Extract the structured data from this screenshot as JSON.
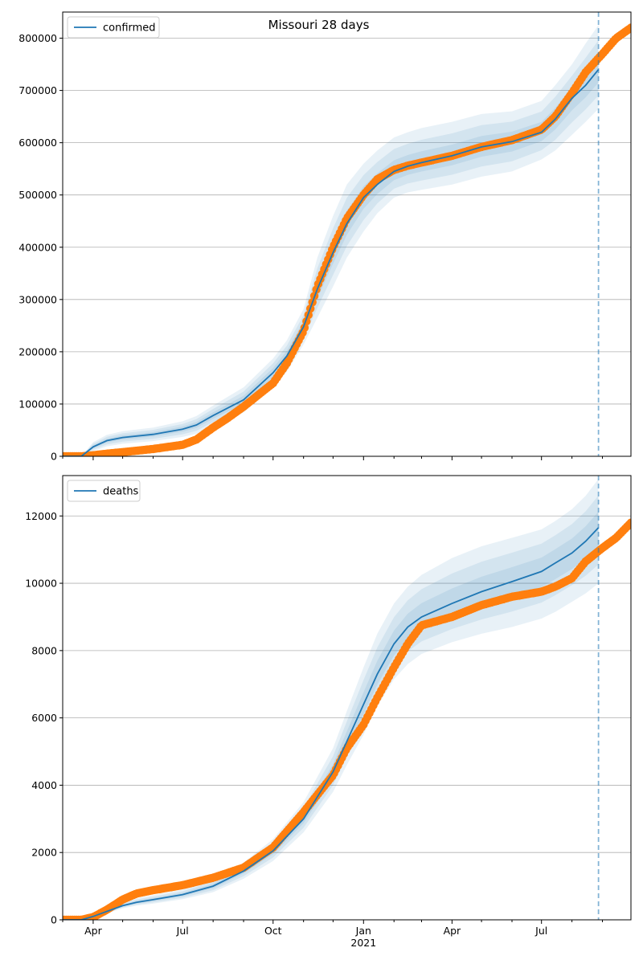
{
  "chart_data": [
    {
      "type": "line",
      "title": "Missouri 28 days",
      "legend": {
        "entries": [
          "confirmed"
        ],
        "placement": "top-left"
      },
      "grid": {
        "x": false,
        "y": true
      },
      "xlim": [
        "2020-03-01",
        "2021-09-30"
      ],
      "ylim": [
        0,
        850000
      ],
      "yticks": [
        0,
        100000,
        200000,
        300000,
        400000,
        500000,
        600000,
        700000,
        800000
      ],
      "ytick_labels": [
        "0",
        "100000",
        "200000",
        "300000",
        "400000",
        "500000",
        "600000",
        "700000",
        "800000"
      ],
      "forecast_line_date": "2021-08-28",
      "model_series": {
        "name": "confirmed",
        "color": "#1f77b4",
        "x": [
          "2020-03-01",
          "2020-03-20",
          "2020-04-01",
          "2020-04-15",
          "2020-05-01",
          "2020-06-01",
          "2020-07-01",
          "2020-07-15",
          "2020-08-01",
          "2020-09-01",
          "2020-10-01",
          "2020-10-15",
          "2020-11-01",
          "2020-11-15",
          "2020-12-01",
          "2020-12-15",
          "2021-01-01",
          "2021-01-15",
          "2021-02-01",
          "2021-02-15",
          "2021-03-01",
          "2021-04-01",
          "2021-05-01",
          "2021-06-01",
          "2021-07-01",
          "2021-07-15",
          "2021-08-01",
          "2021-08-15",
          "2021-08-28"
        ],
        "y": [
          0,
          0,
          18000,
          30000,
          36000,
          42000,
          52000,
          60000,
          78000,
          108000,
          160000,
          192000,
          248000,
          320000,
          390000,
          445000,
          495000,
          520000,
          545000,
          555000,
          562000,
          575000,
          592000,
          602000,
          620000,
          645000,
          685000,
          710000,
          740000
        ],
        "upper": [
          0,
          0,
          27000,
          41000,
          48000,
          55000,
          67000,
          77000,
          97000,
          132000,
          187000,
          222000,
          282000,
          380000,
          460000,
          520000,
          560000,
          585000,
          610000,
          620000,
          628000,
          640000,
          655000,
          660000,
          680000,
          710000,
          750000,
          790000,
          825000
        ],
        "lower": [
          0,
          0,
          10000,
          19000,
          24000,
          29000,
          37000,
          43000,
          59000,
          84000,
          133000,
          162000,
          214000,
          265000,
          325000,
          380000,
          430000,
          465000,
          495000,
          505000,
          510000,
          520000,
          535000,
          545000,
          568000,
          585000,
          615000,
          640000,
          665000
        ]
      },
      "observed": {
        "color": "#ff7f0e",
        "x": [
          "2020-03-01",
          "2020-03-20",
          "2020-04-01",
          "2020-04-15",
          "2020-05-01",
          "2020-06-01",
          "2020-07-01",
          "2020-07-15",
          "2020-08-01",
          "2020-08-15",
          "2020-09-01",
          "2020-10-01",
          "2020-10-15",
          "2020-11-01",
          "2020-11-15",
          "2020-12-01",
          "2020-12-15",
          "2021-01-01",
          "2021-01-15",
          "2021-02-01",
          "2021-02-15",
          "2021-03-01",
          "2021-04-01",
          "2021-05-01",
          "2021-06-01",
          "2021-07-01",
          "2021-07-15",
          "2021-08-01",
          "2021-08-15",
          "2021-09-01",
          "2021-09-15",
          "2021-09-30"
        ],
        "y": [
          0,
          0,
          2000,
          5000,
          8000,
          14000,
          22000,
          32000,
          55000,
          72000,
          95000,
          140000,
          178000,
          240000,
          325000,
          400000,
          455000,
          500000,
          530000,
          548000,
          556000,
          562000,
          575000,
          592000,
          605000,
          625000,
          650000,
          695000,
          735000,
          770000,
          800000,
          820000
        ]
      }
    },
    {
      "type": "line",
      "title": "",
      "legend": {
        "entries": [
          "deaths"
        ],
        "placement": "top-left"
      },
      "grid": {
        "x": false,
        "y": true
      },
      "xlim": [
        "2020-03-01",
        "2021-09-30"
      ],
      "ylim": [
        0,
        13200
      ],
      "yticks": [
        0,
        2000,
        4000,
        6000,
        8000,
        10000,
        12000
      ],
      "ytick_labels": [
        "0",
        "2000",
        "4000",
        "6000",
        "8000",
        "10000",
        "12000"
      ],
      "xticks": [
        "2020-04-01",
        "2020-07-01",
        "2020-10-01",
        "2021-01-01",
        "2021-04-01",
        "2021-07-01"
      ],
      "xtick_labels": [
        "Apr",
        "Jul",
        "Oct",
        "Jan",
        "Apr",
        "Jul"
      ],
      "xtick_year_label": "2021",
      "forecast_line_date": "2021-08-28",
      "model_series": {
        "name": "deaths",
        "color": "#1f77b4",
        "x": [
          "2020-03-01",
          "2020-03-20",
          "2020-04-01",
          "2020-04-15",
          "2020-05-01",
          "2020-05-15",
          "2020-06-01",
          "2020-07-01",
          "2020-08-01",
          "2020-09-01",
          "2020-10-01",
          "2020-11-01",
          "2020-12-01",
          "2020-12-15",
          "2021-01-01",
          "2021-01-15",
          "2021-02-01",
          "2021-02-15",
          "2021-03-01",
          "2021-04-01",
          "2021-05-01",
          "2021-06-01",
          "2021-07-01",
          "2021-07-15",
          "2021-08-01",
          "2021-08-15",
          "2021-08-28"
        ],
        "y": [
          0,
          0,
          100,
          250,
          420,
          520,
          600,
          750,
          1000,
          1450,
          2050,
          3000,
          4400,
          5300,
          6400,
          7300,
          8200,
          8700,
          9000,
          9400,
          9750,
          10050,
          10350,
          10600,
          10900,
          11250,
          11650
        ],
        "upper": [
          0,
          0,
          140,
          320,
          520,
          640,
          730,
          900,
          1200,
          1700,
          2400,
          3500,
          5100,
          6200,
          7500,
          8500,
          9400,
          9900,
          10250,
          10750,
          11100,
          11350,
          11600,
          11850,
          12200,
          12600,
          13100
        ],
        "lower": [
          0,
          0,
          70,
          190,
          340,
          420,
          480,
          610,
          820,
          1220,
          1750,
          2600,
          3800,
          4600,
          5500,
          6350,
          7150,
          7600,
          7900,
          8250,
          8500,
          8700,
          8950,
          9150,
          9450,
          9700,
          10000
        ]
      },
      "observed": {
        "color": "#ff7f0e",
        "x": [
          "2020-03-01",
          "2020-03-20",
          "2020-04-01",
          "2020-04-15",
          "2020-05-01",
          "2020-05-15",
          "2020-06-01",
          "2020-07-01",
          "2020-08-01",
          "2020-09-01",
          "2020-10-01",
          "2020-11-01",
          "2020-12-01",
          "2020-12-15",
          "2021-01-01",
          "2021-01-15",
          "2021-02-01",
          "2021-02-15",
          "2021-03-01",
          "2021-04-01",
          "2021-05-01",
          "2021-06-01",
          "2021-07-01",
          "2021-07-15",
          "2021-08-01",
          "2021-08-15",
          "2021-09-01",
          "2021-09-15",
          "2021-09-30"
        ],
        "y": [
          0,
          0,
          80,
          300,
          600,
          780,
          880,
          1030,
          1250,
          1550,
          2150,
          3200,
          4300,
          5100,
          5800,
          6600,
          7500,
          8200,
          8750,
          9000,
          9350,
          9600,
          9750,
          9900,
          10150,
          10650,
          11050,
          11350,
          11800
        ]
      }
    }
  ]
}
